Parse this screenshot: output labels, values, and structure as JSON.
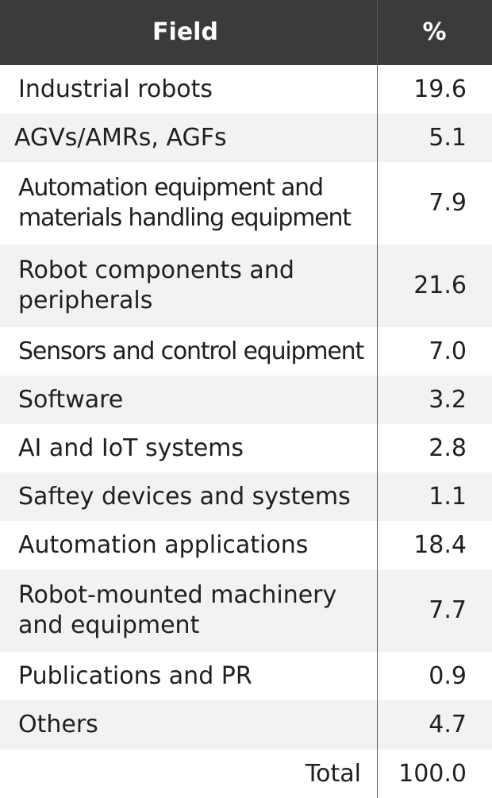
{
  "chart_data": {
    "type": "table",
    "columns": [
      "Field",
      "%"
    ],
    "rows": [
      {
        "field": "Industrial robots",
        "value": "19.6"
      },
      {
        "field": "AGVs/AMRs, AGFs",
        "value": "5.1"
      },
      {
        "field": "Automation equipment and materials handling equipment",
        "value": "7.9"
      },
      {
        "field": "Robot components and peripherals",
        "value": "21.6"
      },
      {
        "field": "Sensors and control equipment",
        "value": "7.0"
      },
      {
        "field": "Software",
        "value": "3.2"
      },
      {
        "field": "AI and IoT systems",
        "value": "2.8"
      },
      {
        "field": "Saftey devices and systems",
        "value": "1.1"
      },
      {
        "field": "Automation applications",
        "value": "18.4"
      },
      {
        "field": "Robot-mounted machinery and equipment",
        "value": "7.7"
      },
      {
        "field": "Publications and PR",
        "value": "0.9"
      },
      {
        "field": "Others",
        "value": "4.7"
      }
    ],
    "total": {
      "label": "Total",
      "value": "100.0"
    }
  },
  "colors": {
    "header_bg": "#3b3b3b",
    "header_text": "#ffffff",
    "row_alt_bg": "#f2f2f2",
    "row_bg": "#ffffff",
    "text": "#1f1f1f"
  }
}
